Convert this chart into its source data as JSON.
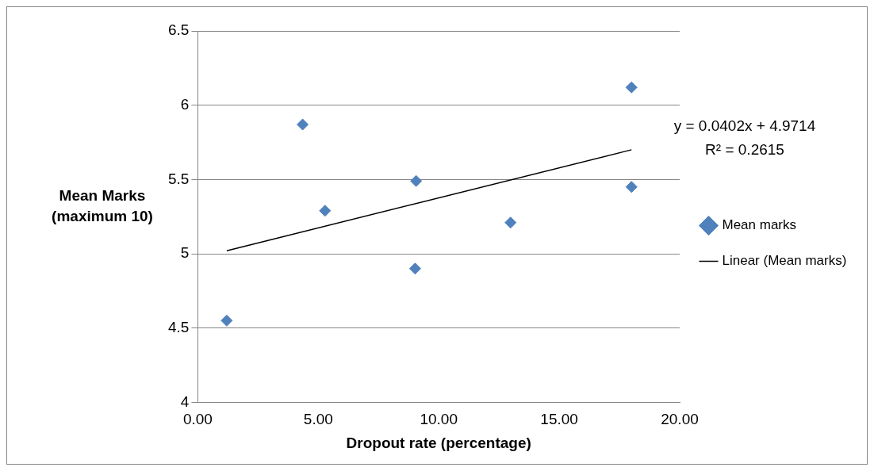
{
  "chart_data": {
    "type": "scatter",
    "xlabel": "Dropout rate (percentage)",
    "ylabel": "Mean Marks (maximum 10)",
    "annotations": [
      "y = 0.0402x + 4.9714",
      "R² = 0.2615"
    ],
    "series": [
      {
        "name": "Mean marks",
        "color": "#4f81bd",
        "marker": "diamond",
        "x": [
          1.2,
          4.35,
          5.28,
          9.06,
          9.02,
          12.98,
          18.0,
          18.0
        ],
        "values": [
          4.55,
          5.87,
          5.29,
          5.49,
          4.9,
          5.21,
          6.12,
          5.45
        ]
      },
      {
        "name": "Linear (Mean marks)",
        "type": "line",
        "color": "#000000",
        "marker": "none",
        "line_style": "solid",
        "x": [
          1.2,
          18.0
        ],
        "values": [
          5.02,
          5.7
        ]
      }
    ],
    "xlim": [
      0,
      20
    ],
    "xticks": [
      {
        "value": 0,
        "label": "0.00"
      },
      {
        "value": 5,
        "label": "5.00"
      },
      {
        "value": 10,
        "label": "10.00"
      },
      {
        "value": 15,
        "label": "15.00"
      },
      {
        "value": 20,
        "label": "20.00"
      }
    ],
    "ylim": [
      4,
      6.5
    ],
    "yticks": [
      4,
      4.5,
      5,
      5.5,
      6,
      6.5
    ],
    "grid": "y",
    "legend": "right"
  }
}
